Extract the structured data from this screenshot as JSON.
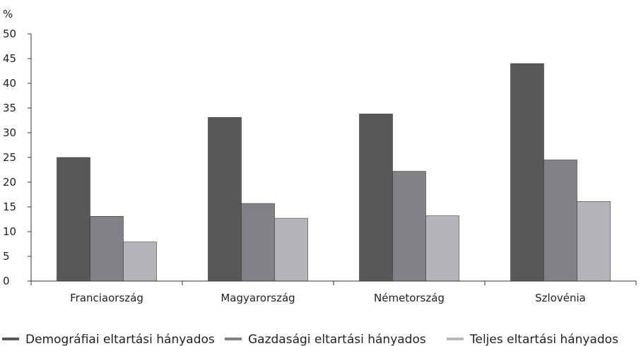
{
  "chart_data": {
    "type": "bar",
    "unit_label": "%",
    "categories": [
      "Franciaország",
      "Magyarország",
      "Németország",
      "Szlovénia"
    ],
    "series": [
      {
        "name": "Demográfiai eltartási hányados",
        "color": "#58585a",
        "values": [
          25.0,
          33.1,
          33.8,
          44.0
        ]
      },
      {
        "name": "Gazdasági eltartási hányados",
        "color": "#818285",
        "values": [
          13.1,
          15.7,
          22.2,
          24.5
        ]
      },
      {
        "name": "Teljes eltartási hányados",
        "color": "#b4b5b8",
        "values": [
          7.9,
          12.7,
          13.2,
          16.1
        ]
      }
    ],
    "ylim": [
      0,
      50
    ],
    "yticks": [
      0,
      5,
      10,
      15,
      20,
      25,
      30,
      35,
      40,
      45,
      50
    ],
    "grid": false,
    "legend_position": "bottom"
  }
}
